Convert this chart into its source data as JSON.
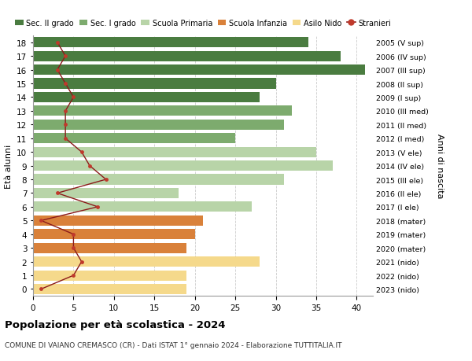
{
  "ages": [
    18,
    17,
    16,
    15,
    14,
    13,
    12,
    11,
    10,
    9,
    8,
    7,
    6,
    5,
    4,
    3,
    2,
    1,
    0
  ],
  "years": [
    "2005 (V sup)",
    "2006 (IV sup)",
    "2007 (III sup)",
    "2008 (II sup)",
    "2009 (I sup)",
    "2010 (III med)",
    "2011 (II med)",
    "2012 (I med)",
    "2013 (V ele)",
    "2014 (IV ele)",
    "2015 (III ele)",
    "2016 (II ele)",
    "2017 (I ele)",
    "2018 (mater)",
    "2019 (mater)",
    "2020 (mater)",
    "2021 (nido)",
    "2022 (nido)",
    "2023 (nido)"
  ],
  "bar_values": [
    34,
    38,
    41,
    30,
    28,
    32,
    31,
    25,
    35,
    37,
    31,
    18,
    27,
    21,
    20,
    19,
    28,
    19,
    19
  ],
  "bar_colors": [
    "#4a7c40",
    "#4a7c40",
    "#4a7c40",
    "#4a7c40",
    "#4a7c40",
    "#7dab6e",
    "#7dab6e",
    "#7dab6e",
    "#b8d4a8",
    "#b8d4a8",
    "#b8d4a8",
    "#b8d4a8",
    "#b8d4a8",
    "#d9813a",
    "#d9813a",
    "#d9813a",
    "#f5d98b",
    "#f5d98b",
    "#f5d98b"
  ],
  "stranieri": [
    3,
    4,
    3,
    4,
    5,
    4,
    4,
    4,
    6,
    7,
    9,
    3,
    8,
    1,
    5,
    5,
    6,
    5,
    1
  ],
  "legend_labels": [
    "Sec. II grado",
    "Sec. I grado",
    "Scuola Primaria",
    "Scuola Infanzia",
    "Asilo Nido",
    "Stranieri"
  ],
  "legend_colors": [
    "#4a7c40",
    "#7dab6e",
    "#b8d4a8",
    "#d9813a",
    "#f5d98b",
    "#c0392b"
  ],
  "ylabel_left": "Età alunni",
  "ylabel_right": "Anni di nascita",
  "title": "Popolazione per età scolastica - 2024",
  "subtitle": "COMUNE DI VAIANO CREMASCO (CR) - Dati ISTAT 1° gennaio 2024 - Elaborazione TUTTITALIA.IT",
  "xlim": [
    0,
    42
  ],
  "grid_color": "#cccccc",
  "bg_color": "#ffffff",
  "stranieri_line_color": "#8b1a1a",
  "stranieri_marker_color": "#c0392b"
}
